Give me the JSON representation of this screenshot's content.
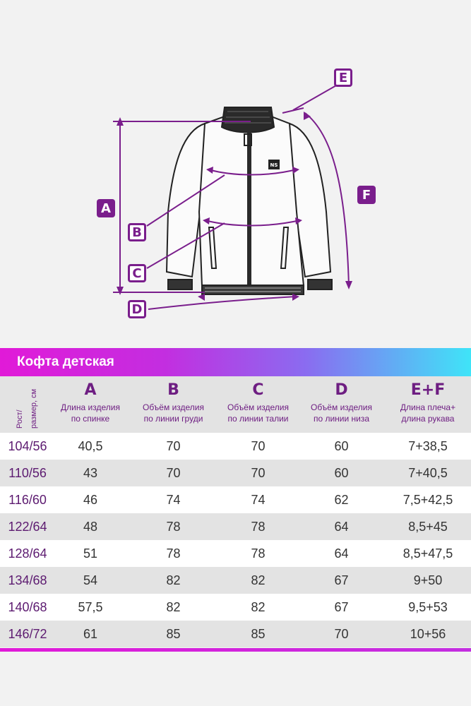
{
  "labels": {
    "a": "A",
    "b": "B",
    "c": "C",
    "d": "D",
    "e": "E",
    "f": "F",
    "logo": "NS"
  },
  "banner": {
    "title": "Кофта детская"
  },
  "table": {
    "size_header_line1": "Рост/",
    "size_header_line2": "размер, см",
    "columns": [
      {
        "letter": "A",
        "desc1": "Длина изделия",
        "desc2": "по спинке"
      },
      {
        "letter": "B",
        "desc1": "Объём изделия",
        "desc2": "по линии груди"
      },
      {
        "letter": "C",
        "desc1": "Объём изделия",
        "desc2": "по линии талии"
      },
      {
        "letter": "D",
        "desc1": "Объём изделия",
        "desc2": "по линии низа"
      },
      {
        "letter": "E+F",
        "desc1": "Длина плеча+",
        "desc2": "длина рукава"
      }
    ],
    "rows": [
      {
        "size": "104/56",
        "a": "40,5",
        "b": "70",
        "c": "70",
        "d": "60",
        "ef": "7+38,5"
      },
      {
        "size": "110/56",
        "a": "43",
        "b": "70",
        "c": "70",
        "d": "60",
        "ef": "7+40,5"
      },
      {
        "size": "116/60",
        "a": "46",
        "b": "74",
        "c": "74",
        "d": "62",
        "ef": "7,5+42,5"
      },
      {
        "size": "122/64",
        "a": "48",
        "b": "78",
        "c": "78",
        "d": "64",
        "ef": "8,5+45"
      },
      {
        "size": "128/64",
        "a": "51",
        "b": "78",
        "c": "78",
        "d": "64",
        "ef": "8,5+47,5"
      },
      {
        "size": "134/68",
        "a": "54",
        "b": "82",
        "c": "82",
        "d": "67",
        "ef": "9+50"
      },
      {
        "size": "140/68",
        "a": "57,5",
        "b": "82",
        "c": "82",
        "d": "67",
        "ef": "9,5+53"
      },
      {
        "size": "146/72",
        "a": "61",
        "b": "85",
        "c": "85",
        "d": "70",
        "ef": "10+56"
      }
    ]
  },
  "colors": {
    "accent": "#7a1e8c",
    "banner_start": "#e11ad8",
    "banner_end": "#3fe4f8",
    "row_gray": "#e3e3e3"
  }
}
